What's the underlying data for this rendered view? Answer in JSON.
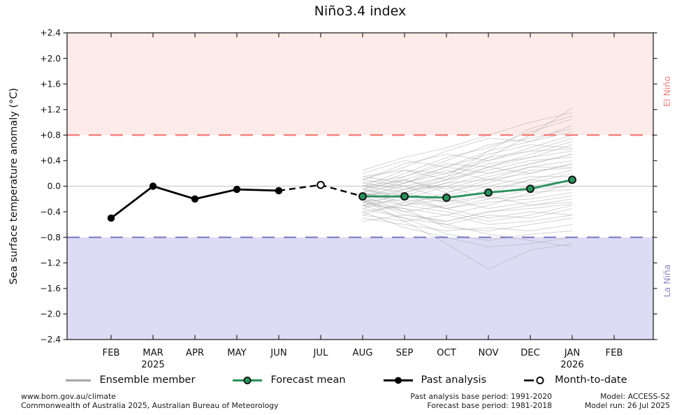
{
  "chart_data": {
    "type": "line",
    "title": "Niño3.4 index",
    "ylabel": "Sea surface temperature anomaly (°C)",
    "ylim": [
      -2.4,
      2.4
    ],
    "ytick_step": 0.4,
    "grid": "horizontal zero line only",
    "legend_position": "bottom center",
    "thresholds": {
      "el_nino": 0.8,
      "la_nina": -0.8
    },
    "x_categories": [
      "FEB",
      "MAR",
      "APR",
      "MAY",
      "JUN",
      "JUL",
      "AUG",
      "SEP",
      "OCT",
      "NOV",
      "DEC",
      "JAN",
      "FEB"
    ],
    "past_analysis": {
      "name": "Past analysis",
      "x": [
        0,
        1,
        2,
        3,
        4
      ],
      "values": [
        -0.5,
        0.0,
        -0.2,
        -0.05,
        -0.07
      ]
    },
    "month_to_date": {
      "name": "Month-to-date",
      "x": [
        5
      ],
      "values": [
        0.02
      ]
    },
    "forecast_mean": {
      "name": "Forecast mean",
      "x": [
        6,
        7,
        8,
        9,
        10,
        11
      ],
      "values": [
        -0.16,
        -0.16,
        -0.18,
        -0.1,
        -0.04,
        0.1
      ]
    },
    "ensemble": {
      "name": "Ensemble member",
      "x": [
        6,
        7,
        8,
        9,
        10,
        11
      ],
      "members": [
        [
          -0.15,
          -0.1,
          0.1,
          0.45,
          0.8,
          1.22
        ],
        [
          -0.05,
          0.2,
          0.45,
          0.6,
          0.85,
          1.05
        ],
        [
          0.1,
          0.3,
          0.55,
          0.75,
          0.7,
          0.95
        ],
        [
          -0.2,
          0.05,
          0.3,
          0.55,
          0.9,
          1.1
        ],
        [
          0.0,
          0.25,
          0.2,
          0.4,
          0.6,
          0.8
        ],
        [
          -0.1,
          0.15,
          0.35,
          0.3,
          0.5,
          0.7
        ],
        [
          0.2,
          0.4,
          0.3,
          0.5,
          0.65,
          0.6
        ],
        [
          -0.25,
          -0.05,
          0.15,
          0.35,
          0.45,
          0.55
        ],
        [
          -0.3,
          -0.2,
          0.0,
          0.2,
          0.35,
          0.5
        ],
        [
          0.05,
          -0.05,
          0.1,
          0.25,
          0.4,
          0.45
        ],
        [
          -0.15,
          0.1,
          -0.05,
          0.15,
          0.3,
          0.4
        ],
        [
          -0.05,
          -0.15,
          0.05,
          0.3,
          0.2,
          0.35
        ],
        [
          0.15,
          0.05,
          0.25,
          0.1,
          0.3,
          0.3
        ],
        [
          -0.2,
          -0.3,
          -0.1,
          0.05,
          0.25,
          0.28
        ],
        [
          -0.35,
          -0.15,
          -0.25,
          -0.05,
          0.1,
          0.25
        ],
        [
          0.0,
          0.1,
          -0.1,
          0.1,
          0.05,
          0.2
        ],
        [
          -0.1,
          -0.25,
          -0.15,
          0.0,
          0.15,
          0.15
        ],
        [
          -0.25,
          -0.4,
          -0.3,
          -0.15,
          0.0,
          0.1
        ],
        [
          0.1,
          0.0,
          -0.2,
          -0.1,
          0.1,
          0.05
        ],
        [
          -0.15,
          -0.05,
          0.0,
          -0.2,
          -0.05,
          0.0
        ],
        [
          -0.3,
          -0.35,
          -0.45,
          -0.3,
          -0.1,
          -0.05
        ],
        [
          -0.05,
          -0.2,
          -0.35,
          -0.25,
          -0.2,
          -0.1
        ],
        [
          -0.4,
          -0.3,
          -0.2,
          -0.35,
          -0.25,
          -0.15
        ],
        [
          -0.2,
          -0.45,
          -0.55,
          -0.4,
          -0.3,
          -0.2
        ],
        [
          -0.1,
          -0.3,
          -0.4,
          -0.55,
          -0.45,
          -0.3
        ],
        [
          -0.35,
          -0.5,
          -0.6,
          -0.45,
          -0.5,
          -0.35
        ],
        [
          -0.45,
          -0.55,
          -0.45,
          -0.6,
          -0.55,
          -0.45
        ],
        [
          -0.25,
          -0.35,
          -0.65,
          -0.7,
          -0.6,
          -0.5
        ],
        [
          -0.5,
          -0.6,
          -0.7,
          -0.65,
          -0.7,
          -0.6
        ],
        [
          -0.3,
          -0.5,
          -0.75,
          -0.85,
          -0.75,
          -0.7
        ],
        [
          -0.4,
          -0.65,
          -0.8,
          -0.95,
          -0.9,
          -0.8
        ],
        [
          -0.2,
          -0.55,
          -0.9,
          -1.3,
          -1.0,
          -0.9
        ],
        [
          -0.15,
          -0.4,
          -0.6,
          -0.75,
          -0.85,
          -0.95
        ],
        [
          0.05,
          0.15,
          0.4,
          0.65,
          0.75,
          0.9
        ],
        [
          -0.1,
          0.05,
          0.2,
          0.45,
          0.55,
          0.75
        ],
        [
          0.15,
          0.25,
          0.1,
          0.3,
          0.45,
          0.65
        ],
        [
          -0.05,
          0.1,
          0.3,
          0.2,
          0.35,
          0.5
        ],
        [
          -0.3,
          -0.1,
          0.05,
          0.1,
          0.2,
          0.35
        ],
        [
          0.0,
          -0.1,
          -0.25,
          -0.15,
          -0.3,
          -0.25
        ],
        [
          -0.25,
          -0.15,
          -0.35,
          -0.5,
          -0.4,
          -0.45
        ],
        [
          0.25,
          0.45,
          0.6,
          0.8,
          1.0,
          1.15
        ],
        [
          -0.15,
          0.0,
          0.15,
          0.55,
          0.7,
          0.85
        ],
        [
          -0.45,
          -0.25,
          -0.35,
          -0.2,
          -0.15,
          0.05
        ],
        [
          0.1,
          0.35,
          0.5,
          0.4,
          0.55,
          0.58
        ],
        [
          -0.55,
          -0.45,
          -0.55,
          -0.4,
          -0.35,
          -0.28
        ]
      ]
    }
  },
  "y_axis": {
    "label": "Sea surface temperature anomaly (°C)",
    "ticks": [
      {
        "value": 2.4,
        "label": "+2.4"
      },
      {
        "value": 2.0,
        "label": "+2.0"
      },
      {
        "value": 1.6,
        "label": "+1.6"
      },
      {
        "value": 1.2,
        "label": "+1.2"
      },
      {
        "value": 0.8,
        "label": "+0.8"
      },
      {
        "value": 0.4,
        "label": "+0.4"
      },
      {
        "value": 0.0,
        "label": "0.0"
      },
      {
        "value": -0.4,
        "label": "−0.4"
      },
      {
        "value": -0.8,
        "label": "−0.8"
      },
      {
        "value": -1.2,
        "label": "−1.2"
      },
      {
        "value": -1.6,
        "label": "−1.6"
      },
      {
        "value": -2.0,
        "label": "−2.0"
      },
      {
        "value": -2.4,
        "label": "−2.4"
      }
    ]
  },
  "x_axis": {
    "categories": [
      {
        "label": "FEB"
      },
      {
        "label": "MAR",
        "sublabel": "2025"
      },
      {
        "label": "APR"
      },
      {
        "label": "MAY"
      },
      {
        "label": "JUN"
      },
      {
        "label": "JUL"
      },
      {
        "label": "AUG"
      },
      {
        "label": "SEP"
      },
      {
        "label": "OCT"
      },
      {
        "label": "NOV"
      },
      {
        "label": "DEC"
      },
      {
        "label": "JAN",
        "sublabel": "2026"
      },
      {
        "label": "FEB"
      }
    ]
  },
  "regions": {
    "el_nino": "El Niño",
    "la_nina": "La Niña"
  },
  "legend": {
    "items": [
      {
        "label": "Ensemble member",
        "key": "ensemble"
      },
      {
        "label": "Forecast mean",
        "key": "forecast"
      },
      {
        "label": "Past analysis",
        "key": "past"
      },
      {
        "label": "Month-to-date",
        "key": "mtd"
      }
    ]
  },
  "footer": {
    "site": "www.bom.gov.au/climate",
    "copyright": "Commonwealth of Australia 2025, Australian Bureau of Meteorology",
    "past_base": "Past analysis base period: 1991-2020",
    "forecast_base": "Forecast base period: 1981-2018",
    "model": "Model: ACCESS-S2",
    "model_run": "Model run: 26 Jul 2025"
  },
  "colors": {
    "el_nino_fill": "#fcebe8",
    "la_nina_fill": "#dddcf4",
    "el_nino_line": "#f4736c",
    "la_nina_line": "#7f7dc4",
    "el_nino_text": "#ef827c",
    "la_nina_text": "#8987c8",
    "forecast_green": "#27925a",
    "past_black": "#000000",
    "ensemble_gray": "#aaaaaa",
    "legend_ensemble": "#a9a9a9",
    "zero_line": "#cccccc",
    "axis": "#262626"
  }
}
